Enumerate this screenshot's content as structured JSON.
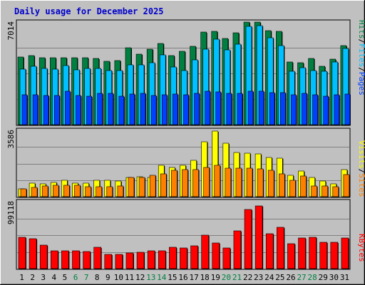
{
  "chart_data": {
    "type": "bar",
    "title": "Daily usage for December 2025",
    "categories": [
      "1",
      "2",
      "3",
      "4",
      "5",
      "6",
      "7",
      "8",
      "9",
      "10",
      "11",
      "12",
      "13",
      "14",
      "15",
      "16",
      "17",
      "18",
      "19",
      "20",
      "21",
      "22",
      "23",
      "24",
      "25",
      "26",
      "27",
      "28",
      "29",
      "30",
      "31"
    ],
    "weekend_days": [
      "6",
      "7",
      "13",
      "14",
      "20",
      "21",
      "27",
      "28"
    ],
    "colors": {
      "title": "#0000cc",
      "hits": "#008040",
      "files": "#00c0ff",
      "pages": "#0040ff",
      "visits": "#ffff00",
      "sites": "#ff8000",
      "kbytes": "#ff0000",
      "weekday_label": "#000000",
      "weekend_label": "#008040",
      "panel_background": "#c0c0c0",
      "frame": "#c0c0c0"
    },
    "panels": [
      {
        "name": "hits_files_pages",
        "ymax_label": "7014",
        "ymax": 7014,
        "axis_labels": [
          "Hits",
          "/",
          "Files",
          "/",
          "Pages"
        ],
        "series": [
          {
            "name": "Hits",
            "values": [
              4620,
              4740,
              4580,
              4580,
              4560,
              4580,
              4560,
              4510,
              4330,
              4370,
              5250,
              4830,
              5150,
              5540,
              4730,
              5010,
              5380,
              6350,
              6380,
              5880,
              6270,
              7000,
              7000,
              6430,
              6400,
              4290,
              4220,
              4510,
              3990,
              4480,
              5400
            ]
          },
          {
            "name": "Files",
            "values": [
              3820,
              3970,
              3840,
              3810,
              4050,
              3770,
              3840,
              3830,
              3690,
              3700,
              4100,
              4100,
              4250,
              4760,
              3940,
              3720,
              4450,
              5160,
              5860,
              5100,
              5500,
              6740,
              6790,
              5960,
              5430,
              3650,
              3920,
              3720,
              3650,
              4300,
              5200
            ]
          },
          {
            "name": "Pages",
            "values": [
              2050,
              2050,
              2000,
              2000,
              2300,
              2000,
              1950,
              2150,
              2150,
              1950,
              2100,
              2150,
              2000,
              2050,
              2100,
              2050,
              2150,
              2300,
              2250,
              2150,
              2150,
              2300,
              2300,
              2200,
              2200,
              2050,
              2150,
              2050,
              1950,
              2050,
              2100
            ]
          }
        ]
      },
      {
        "name": "visits_sites",
        "ymax_label": "3586",
        "ymax": 3586,
        "axis_labels": [
          "Visits",
          "/",
          "Sites"
        ],
        "series": [
          {
            "name": "Visits",
            "values": [
              430,
              720,
              680,
              760,
              900,
              730,
              720,
              870,
              880,
              860,
              1030,
              1080,
              1050,
              1700,
              1580,
              1700,
              1970,
              2980,
              3560,
              2880,
              2400,
              2350,
              2320,
              2130,
              2080,
              1160,
              1390,
              1030,
              850,
              680,
              1450
            ]
          },
          {
            "name": "Sites",
            "values": [
              420,
              500,
              560,
              600,
              630,
              620,
              540,
              550,
              530,
              580,
              1050,
              1050,
              1140,
              1240,
              1430,
              1480,
              1470,
              1570,
              1700,
              1560,
              1560,
              1550,
              1510,
              1440,
              1250,
              870,
              1130,
              590,
              560,
              550,
              1200
            ]
          }
        ]
      },
      {
        "name": "kbytes",
        "ymax_label": "99118",
        "ymax": 99118,
        "axis_labels": [
          "KBytes"
        ],
        "series": [
          {
            "name": "KBytes",
            "values": [
              46200,
              44800,
              34500,
              26300,
              26800,
              26700,
              25700,
              31900,
              21000,
              21500,
              23700,
              24100,
              26000,
              26100,
              31800,
              30900,
              33400,
              49500,
              37900,
              30100,
              55800,
              87000,
              93000,
              52000,
              61200,
              37000,
              45600,
              45900,
              38700,
              38700,
              45700
            ]
          }
        ]
      }
    ]
  }
}
